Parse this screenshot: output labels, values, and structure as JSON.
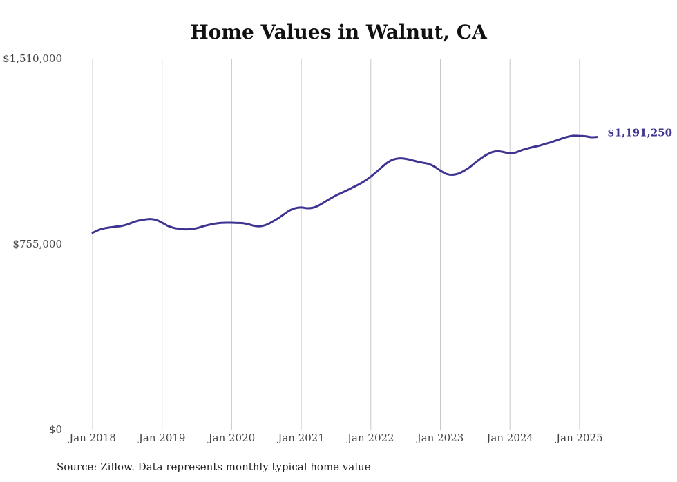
{
  "chart_data": {
    "type": "line",
    "title": "Home Values in Walnut, CA",
    "xlabel": "",
    "ylabel": "",
    "ylim": [
      0,
      1510000
    ],
    "y_ticks": [
      {
        "value": 0,
        "label": "$0"
      },
      {
        "value": 755000,
        "label": "$755,000"
      },
      {
        "value": 1510000,
        "label": "$1,510,000"
      }
    ],
    "x_ticks": [
      {
        "value": "2018-01",
        "label": "Jan 2018"
      },
      {
        "value": "2019-01",
        "label": "Jan 2019"
      },
      {
        "value": "2020-01",
        "label": "Jan 2020"
      },
      {
        "value": "2021-01",
        "label": "Jan 2021"
      },
      {
        "value": "2022-01",
        "label": "Jan 2022"
      },
      {
        "value": "2023-01",
        "label": "Jan 2023"
      },
      {
        "value": "2024-01",
        "label": "Jan 2024"
      },
      {
        "value": "2025-01",
        "label": "Jan 2025"
      }
    ],
    "grid": {
      "vertical": true,
      "horizontal": false
    },
    "colors": {
      "line": "#3d3491",
      "grid": "#c8c8c8"
    },
    "end_label": "$1,191,250",
    "x": [
      "2018-01",
      "2018-02",
      "2018-03",
      "2018-04",
      "2018-05",
      "2018-06",
      "2018-07",
      "2018-08",
      "2018-09",
      "2018-10",
      "2018-11",
      "2018-12",
      "2019-01",
      "2019-02",
      "2019-03",
      "2019-04",
      "2019-05",
      "2019-06",
      "2019-07",
      "2019-08",
      "2019-09",
      "2019-10",
      "2019-11",
      "2019-12",
      "2020-01",
      "2020-02",
      "2020-03",
      "2020-04",
      "2020-05",
      "2020-06",
      "2020-07",
      "2020-08",
      "2020-09",
      "2020-10",
      "2020-11",
      "2020-12",
      "2021-01",
      "2021-02",
      "2021-03",
      "2021-04",
      "2021-05",
      "2021-06",
      "2021-07",
      "2021-08",
      "2021-09",
      "2021-10",
      "2021-11",
      "2021-12",
      "2022-01",
      "2022-02",
      "2022-03",
      "2022-04",
      "2022-05",
      "2022-06",
      "2022-07",
      "2022-08",
      "2022-09",
      "2022-10",
      "2022-11",
      "2022-12",
      "2023-01",
      "2023-02",
      "2023-03",
      "2023-04",
      "2023-05",
      "2023-06",
      "2023-07",
      "2023-08",
      "2023-09",
      "2023-10",
      "2023-11",
      "2023-12",
      "2024-01",
      "2024-02",
      "2024-03",
      "2024-04",
      "2024-05",
      "2024-06",
      "2024-07",
      "2024-08",
      "2024-09",
      "2024-10",
      "2024-11",
      "2024-12",
      "2025-01",
      "2025-02",
      "2025-03",
      "2025-04"
    ],
    "series": [
      {
        "values": [
          801000,
          812000,
          819000,
          823000,
          826000,
          829000,
          835000,
          844000,
          851000,
          855000,
          857000,
          853000,
          842000,
          829000,
          821000,
          817000,
          815000,
          816000,
          820000,
          827000,
          833000,
          838000,
          841000,
          842000,
          842000,
          841000,
          840000,
          835000,
          829000,
          828000,
          834000,
          846000,
          860000,
          876000,
          892000,
          901000,
          904000,
          901000,
          903000,
          912000,
          926000,
          940000,
          953000,
          964000,
          975000,
          987000,
          999000,
          1013000,
          1030000,
          1049000,
          1070000,
          1089000,
          1100000,
          1104000,
          1102000,
          1097000,
          1091000,
          1086000,
          1081000,
          1070000,
          1054000,
          1041000,
          1037000,
          1041000,
          1052000,
          1067000,
          1086000,
          1104000,
          1119000,
          1130000,
          1133000,
          1129000,
          1124000,
          1128000,
          1137000,
          1144000,
          1150000,
          1155000,
          1162000,
          1169000,
          1177000,
          1185000,
          1192000,
          1196000,
          1195000,
          1194000,
          1190000,
          1191250
        ]
      }
    ]
  },
  "source_note": "Source: Zillow. Data represents monthly typical home value"
}
